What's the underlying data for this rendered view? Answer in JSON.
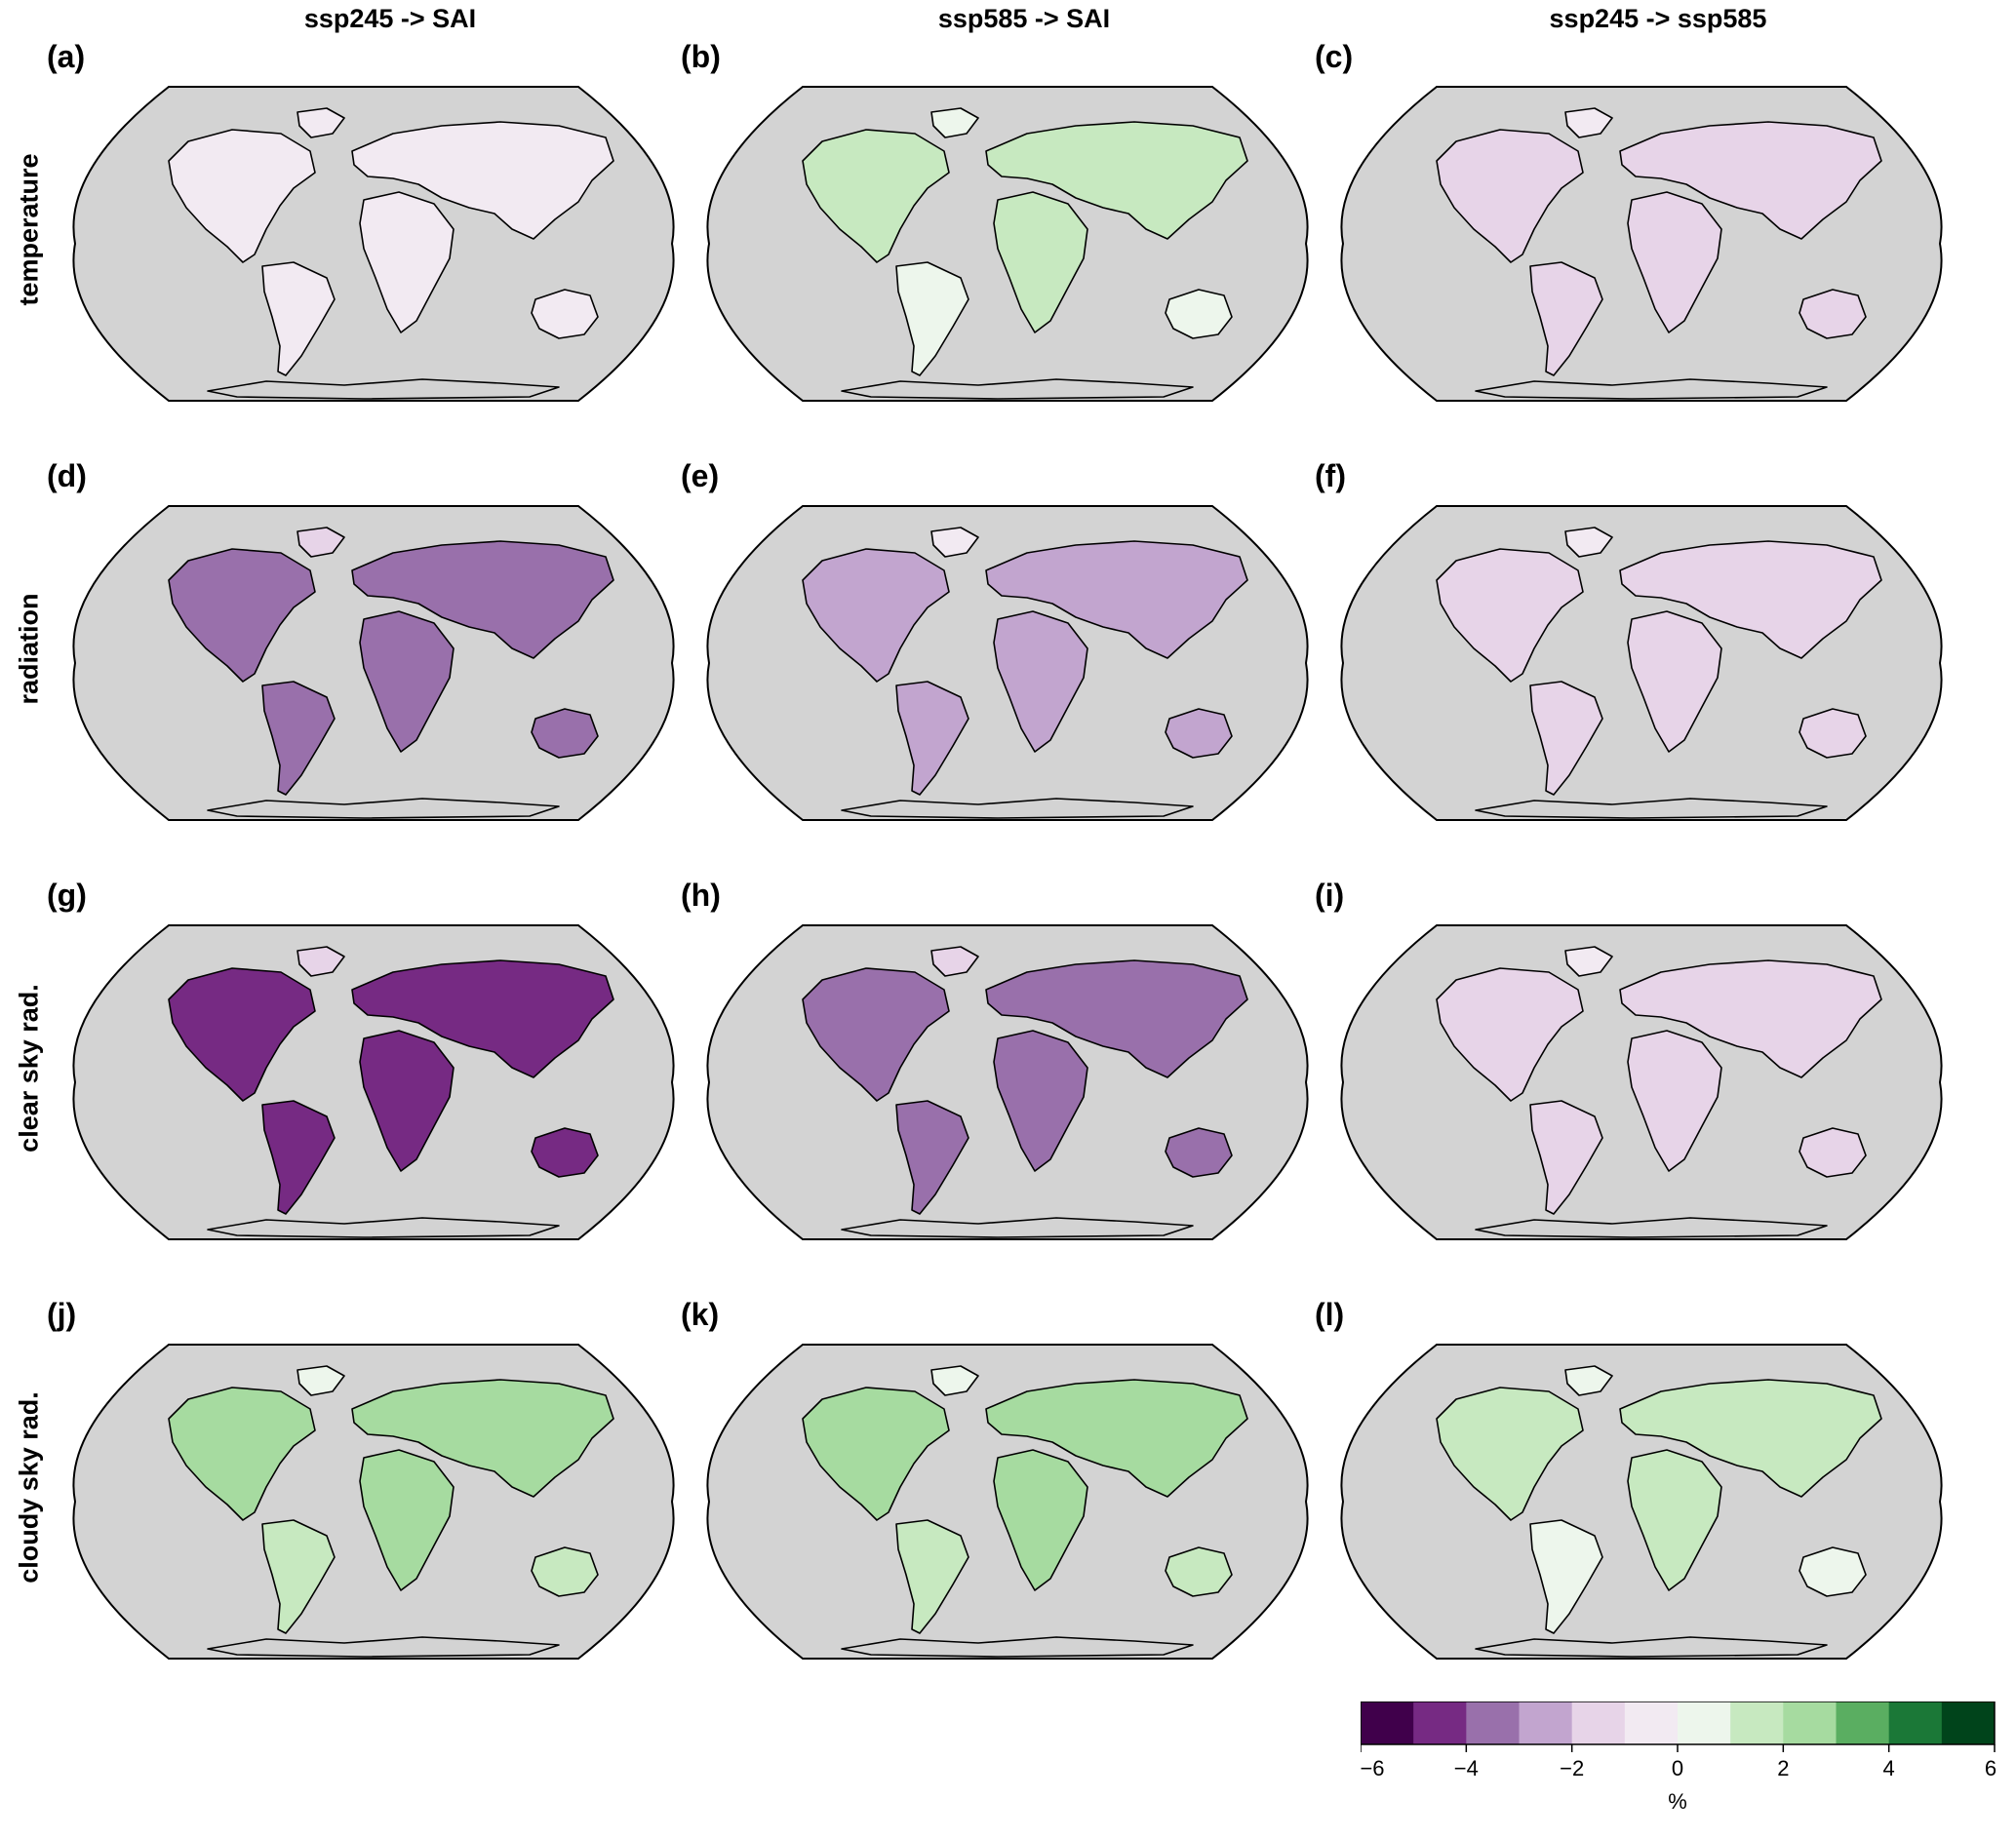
{
  "columns": [
    "ssp245 -> SAI",
    "ssp585 -> SAI",
    "ssp245 -> ssp585"
  ],
  "rows": [
    "temperature",
    "radiation",
    "clear sky rad.",
    "cloudy sky rad."
  ],
  "panels": [
    {
      "label": "(a)",
      "row": 0,
      "col": 0,
      "dominant": -1
    },
    {
      "label": "(b)",
      "row": 0,
      "col": 1,
      "dominant": 1
    },
    {
      "label": "(c)",
      "row": 0,
      "col": 2,
      "dominant": -2
    },
    {
      "label": "(d)",
      "row": 1,
      "col": 0,
      "dominant": -4
    },
    {
      "label": "(e)",
      "row": 1,
      "col": 1,
      "dominant": -3
    },
    {
      "label": "(f)",
      "row": 1,
      "col": 2,
      "dominant": -2
    },
    {
      "label": "(g)",
      "row": 2,
      "col": 0,
      "dominant": -5
    },
    {
      "label": "(h)",
      "row": 2,
      "col": 1,
      "dominant": -4
    },
    {
      "label": "(i)",
      "row": 2,
      "col": 2,
      "dominant": -2
    },
    {
      "label": "(j)",
      "row": 3,
      "col": 0,
      "dominant": 2
    },
    {
      "label": "(k)",
      "row": 3,
      "col": 1,
      "dominant": 2
    },
    {
      "label": "(l)",
      "row": 3,
      "col": 2,
      "dominant": 1
    }
  ],
  "chart_data": {
    "type": "heatmap",
    "colorbar": {
      "min": -6,
      "max": 6,
      "step": 1,
      "ticks": [
        "−6",
        "−4",
        "−2",
        "0",
        "2",
        "4",
        "6"
      ],
      "tick_values": [
        -6,
        -4,
        -2,
        0,
        2,
        4,
        6
      ],
      "unit_label": "%",
      "colors": [
        "#40004b",
        "#762a83",
        "#9970ab",
        "#c2a5cf",
        "#e7d4e8",
        "#f2eaf2",
        "#edf6ec",
        "#c7e9c0",
        "#a6dba0",
        "#5aae61",
        "#1b7837",
        "#00441b"
      ]
    },
    "ocean_color": "#d3d3d3",
    "outline_color": "#000000"
  }
}
